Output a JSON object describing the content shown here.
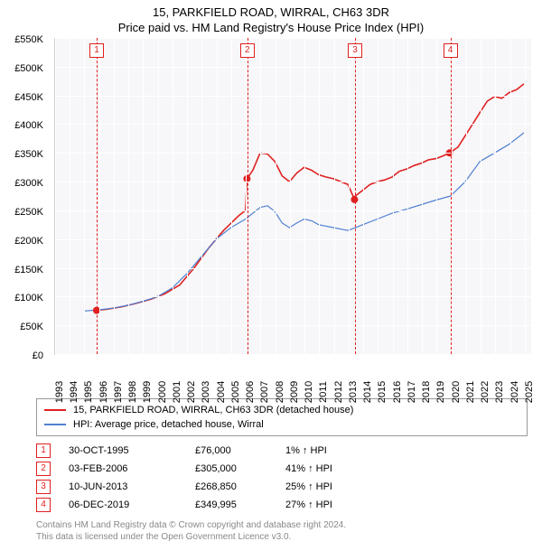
{
  "title": "15, PARKFIELD ROAD, WIRRAL, CH63 3DR",
  "subtitle": "Price paid vs. HM Land Registry's House Price Index (HPI)",
  "chart": {
    "type": "line",
    "background_color": "#f7f7f9",
    "grid_color": "#ffffff",
    "axis_color": "#d0d0d8",
    "ylim": [
      0,
      550000
    ],
    "ytick_step": 50000,
    "ytick_labels": [
      "£0",
      "£50K",
      "£100K",
      "£150K",
      "£200K",
      "£250K",
      "£300K",
      "£350K",
      "£400K",
      "£450K",
      "£500K",
      "£550K"
    ],
    "x_years": [
      1993,
      1994,
      1995,
      1996,
      1997,
      1998,
      1999,
      2000,
      2001,
      2002,
      2003,
      2004,
      2005,
      2006,
      2007,
      2008,
      2009,
      2010,
      2011,
      2012,
      2013,
      2014,
      2015,
      2016,
      2017,
      2018,
      2019,
      2020,
      2021,
      2022,
      2023,
      2024,
      2025
    ],
    "xlim": [
      1993,
      2025.5
    ],
    "series": [
      {
        "name": "15, PARKFIELD ROAD, WIRRAL, CH63 3DR (detached house)",
        "color": "#e02020",
        "line_width": 1.6,
        "points": [
          [
            1995.83,
            76000
          ],
          [
            1996.5,
            78000
          ],
          [
            1997.5,
            82000
          ],
          [
            1998.5,
            88000
          ],
          [
            1999.5,
            95000
          ],
          [
            2000.5,
            105000
          ],
          [
            2001.5,
            120000
          ],
          [
            2002.5,
            150000
          ],
          [
            2003.5,
            185000
          ],
          [
            2004.5,
            215000
          ],
          [
            2005.5,
            240000
          ],
          [
            2006.0,
            250000
          ],
          [
            2006.1,
            305000
          ],
          [
            2006.5,
            320000
          ],
          [
            2007.0,
            350000
          ],
          [
            2007.5,
            348000
          ],
          [
            2008.0,
            335000
          ],
          [
            2008.5,
            310000
          ],
          [
            2009.0,
            300000
          ],
          [
            2009.5,
            315000
          ],
          [
            2010.0,
            325000
          ],
          [
            2010.5,
            320000
          ],
          [
            2011.0,
            312000
          ],
          [
            2011.5,
            308000
          ],
          [
            2012.0,
            305000
          ],
          [
            2012.5,
            300000
          ],
          [
            2013.0,
            295000
          ],
          [
            2013.44,
            268850
          ],
          [
            2013.5,
            275000
          ],
          [
            2014.0,
            285000
          ],
          [
            2014.5,
            295000
          ],
          [
            2015.0,
            300000
          ],
          [
            2015.5,
            303000
          ],
          [
            2016.0,
            308000
          ],
          [
            2016.5,
            318000
          ],
          [
            2017.0,
            322000
          ],
          [
            2017.5,
            328000
          ],
          [
            2018.0,
            332000
          ],
          [
            2018.5,
            338000
          ],
          [
            2019.0,
            340000
          ],
          [
            2019.5,
            345000
          ],
          [
            2019.93,
            349995
          ],
          [
            2020.5,
            360000
          ],
          [
            2021.0,
            380000
          ],
          [
            2021.5,
            400000
          ],
          [
            2022.0,
            420000
          ],
          [
            2022.5,
            440000
          ],
          [
            2023.0,
            448000
          ],
          [
            2023.5,
            445000
          ],
          [
            2024.0,
            455000
          ],
          [
            2024.5,
            460000
          ],
          [
            2025.0,
            470000
          ]
        ]
      },
      {
        "name": "HPI: Average price, detached house, Wirral",
        "color": "#5080d0",
        "line_width": 1.2,
        "points": [
          [
            1995.0,
            75000
          ],
          [
            1996.0,
            77000
          ],
          [
            1997.0,
            80000
          ],
          [
            1998.0,
            85000
          ],
          [
            1999.0,
            92000
          ],
          [
            2000.0,
            100000
          ],
          [
            2001.0,
            115000
          ],
          [
            2002.0,
            140000
          ],
          [
            2003.0,
            170000
          ],
          [
            2004.0,
            200000
          ],
          [
            2005.0,
            220000
          ],
          [
            2006.0,
            235000
          ],
          [
            2007.0,
            255000
          ],
          [
            2007.5,
            258000
          ],
          [
            2008.0,
            248000
          ],
          [
            2008.5,
            228000
          ],
          [
            2009.0,
            220000
          ],
          [
            2009.5,
            228000
          ],
          [
            2010.0,
            235000
          ],
          [
            2010.5,
            232000
          ],
          [
            2011.0,
            225000
          ],
          [
            2012.0,
            220000
          ],
          [
            2013.0,
            215000
          ],
          [
            2014.0,
            225000
          ],
          [
            2015.0,
            235000
          ],
          [
            2016.0,
            245000
          ],
          [
            2017.0,
            252000
          ],
          [
            2018.0,
            260000
          ],
          [
            2019.0,
            268000
          ],
          [
            2020.0,
            275000
          ],
          [
            2021.0,
            300000
          ],
          [
            2022.0,
            335000
          ],
          [
            2023.0,
            350000
          ],
          [
            2024.0,
            365000
          ],
          [
            2025.0,
            385000
          ]
        ]
      }
    ],
    "sale_markers": [
      {
        "num": "1",
        "year": 1995.83,
        "price": 76000
      },
      {
        "num": "2",
        "year": 2006.1,
        "price": 305000
      },
      {
        "num": "3",
        "year": 2013.44,
        "price": 268850
      },
      {
        "num": "4",
        "year": 2019.93,
        "price": 349995
      }
    ],
    "marker_color": "#e02020",
    "marker_radius": 4
  },
  "legend": {
    "items": [
      {
        "color": "#e02020",
        "label": "15, PARKFIELD ROAD, WIRRAL, CH63 3DR (detached house)"
      },
      {
        "color": "#5080d0",
        "label": "HPI: Average price, detached house, Wirral"
      }
    ]
  },
  "sales_table": {
    "rows": [
      {
        "num": "1",
        "date": "30-OCT-1995",
        "price": "£76,000",
        "diff": "1% ↑ HPI"
      },
      {
        "num": "2",
        "date": "03-FEB-2006",
        "price": "£305,000",
        "diff": "41% ↑ HPI"
      },
      {
        "num": "3",
        "date": "10-JUN-2013",
        "price": "£268,850",
        "diff": "25% ↑ HPI"
      },
      {
        "num": "4",
        "date": "06-DEC-2019",
        "price": "£349,995",
        "diff": "27% ↑ HPI"
      }
    ]
  },
  "footnote": {
    "line1": "Contains HM Land Registry data © Crown copyright and database right 2024.",
    "line2": "This data is licensed under the Open Government Licence v3.0."
  }
}
